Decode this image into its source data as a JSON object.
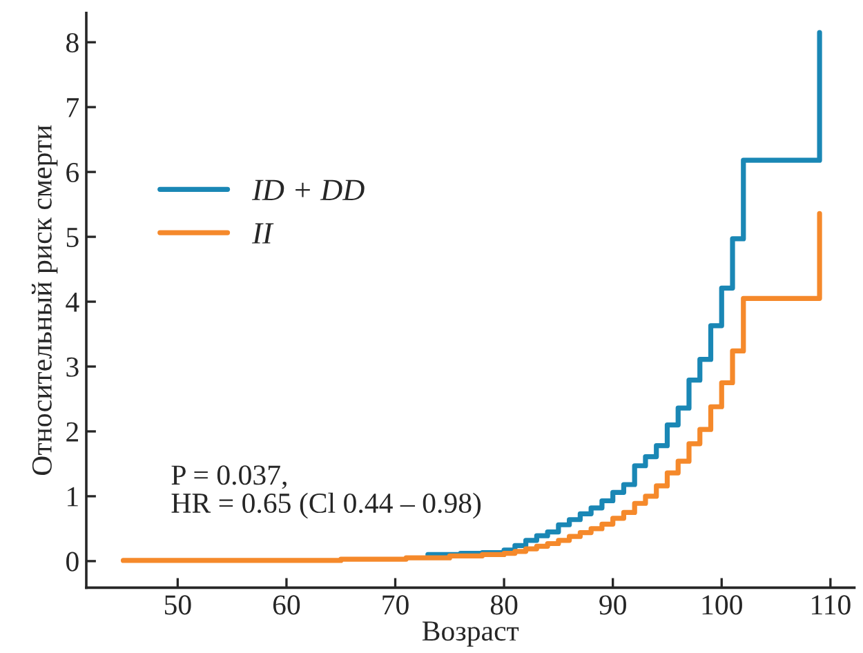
{
  "chart_data": {
    "type": "step",
    "xlabel": "Возраст",
    "ylabel": "Относительный риск смерти",
    "series": [
      {
        "name": "ID + DD",
        "color": "#1a87b5",
        "x": [
          73,
          76,
          78,
          80,
          81,
          82,
          83,
          84,
          85,
          86,
          87,
          88,
          89,
          90,
          91,
          92,
          93,
          94,
          95,
          96,
          97,
          98,
          99,
          100,
          101,
          102,
          109
        ],
        "values": [
          0.1,
          0.12,
          0.13,
          0.17,
          0.24,
          0.32,
          0.39,
          0.45,
          0.56,
          0.64,
          0.73,
          0.82,
          0.93,
          1.06,
          1.18,
          1.47,
          1.61,
          1.78,
          2.1,
          2.36,
          2.79,
          3.11,
          3.63,
          4.21,
          4.97,
          6.18,
          8.15
        ]
      },
      {
        "name": "II",
        "color": "#f5892b",
        "x": [
          45,
          65,
          71,
          75,
          78,
          80,
          81,
          82,
          83,
          84,
          85,
          86,
          87,
          88,
          89,
          90,
          91,
          92,
          93,
          94,
          95,
          96,
          97,
          98,
          99,
          100,
          101,
          102,
          109
        ],
        "values": [
          0.01,
          0.03,
          0.05,
          0.08,
          0.1,
          0.12,
          0.15,
          0.19,
          0.23,
          0.27,
          0.32,
          0.38,
          0.44,
          0.5,
          0.57,
          0.66,
          0.75,
          0.89,
          1.0,
          1.16,
          1.36,
          1.54,
          1.81,
          2.03,
          2.38,
          2.75,
          3.24,
          4.05,
          5.36
        ]
      }
    ],
    "xlim": [
      41.6,
      112.2
    ],
    "xticks": [
      50,
      60,
      70,
      80,
      90,
      100,
      110
    ],
    "ylim": [
      -0.41,
      8.45
    ],
    "yticks": [
      0,
      1,
      2,
      3,
      4,
      5,
      6,
      7,
      8
    ],
    "legend": "top left",
    "grid": false,
    "annotations": [
      "P = 0.037,\nHR = 0.65 (Cl 0.44 – 0.98)"
    ]
  }
}
